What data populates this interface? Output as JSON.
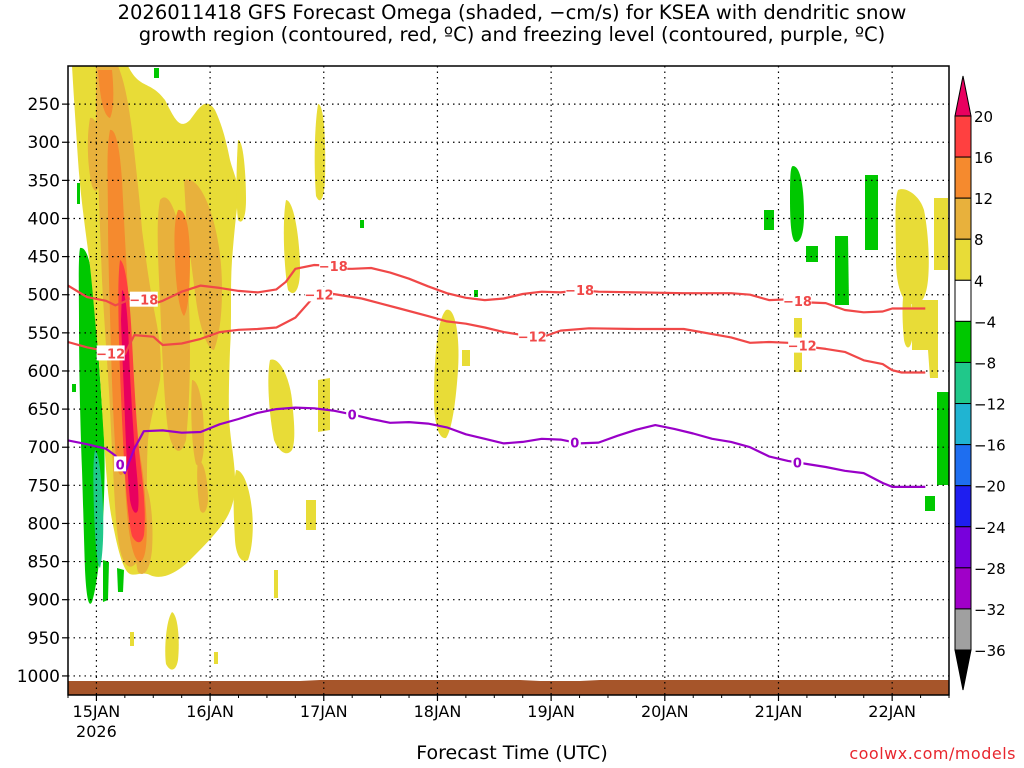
{
  "title": "2026011418 GFS Forecast Omega (shaded, −cm/s) for KSEA with dendritic snow\ngrowth region (contoured, red, ºC) and freezing level (contoured, purple, ºC)",
  "credit": "coolwx.com/models",
  "chart_data": {
    "type": "heatmap",
    "title": "2026011418 GFS Forecast Omega (shaded, −cm/s) for KSEA with dendritic snow growth region (contoured, red, ºC) and freezing level (contoured, purple, ºC)",
    "xlabel": "Forecast Time (UTC)",
    "ylabel": "",
    "x_range_hours": [
      0,
      186
    ],
    "x_ticks": [
      {
        "hour": 6,
        "label": "15JAN",
        "sublabel": "2026"
      },
      {
        "hour": 30,
        "label": "16JAN"
      },
      {
        "hour": 54,
        "label": "17JAN"
      },
      {
        "hour": 78,
        "label": "18JAN"
      },
      {
        "hour": 102,
        "label": "19JAN"
      },
      {
        "hour": 126,
        "label": "20JAN"
      },
      {
        "hour": 150,
        "label": "21JAN"
      },
      {
        "hour": 174,
        "label": "22JAN"
      }
    ],
    "y_ticks": [
      250,
      300,
      350,
      400,
      450,
      500,
      550,
      600,
      650,
      700,
      750,
      800,
      850,
      900,
      950,
      1000
    ],
    "y_range_hpa": [
      200,
      1025
    ],
    "grid": true,
    "colorbar": {
      "labels": [
        "20",
        "16",
        "12",
        "8",
        "4",
        "−4",
        "−8",
        "−12",
        "−16",
        "−20",
        "−24",
        "−28",
        "−32",
        "−36"
      ],
      "colors": [
        "#e8005f",
        "#ff4040",
        "#f58a2e",
        "#e8b13c",
        "#e8dc37",
        "#ffffff",
        "#00c800",
        "#20c88a",
        "#20b4d2",
        "#1e6ef0",
        "#1e1ef0",
        "#7800dc",
        "#a000c8",
        "#a0a0a0",
        "#000000"
      ]
    },
    "contours": [
      {
        "name": "dgz-top",
        "label": "−18",
        "color": "#f04848",
        "points": [
          [
            0,
            488
          ],
          [
            4,
            503
          ],
          [
            8,
            508
          ],
          [
            10,
            514
          ],
          [
            12,
            509
          ],
          [
            14,
            501
          ],
          [
            18,
            512
          ],
          [
            20,
            508
          ],
          [
            24,
            496
          ],
          [
            28,
            488
          ],
          [
            32,
            491
          ],
          [
            36,
            495
          ],
          [
            40,
            497
          ],
          [
            44,
            493
          ],
          [
            46,
            483
          ],
          [
            48,
            466
          ],
          [
            52,
            461
          ],
          [
            56,
            462
          ],
          [
            58,
            466
          ],
          [
            60,
            466
          ],
          [
            64,
            465
          ],
          [
            68,
            471
          ],
          [
            72,
            479
          ],
          [
            76,
            489
          ],
          [
            80,
            498
          ],
          [
            84,
            504
          ],
          [
            88,
            507
          ],
          [
            92,
            505
          ],
          [
            96,
            499
          ],
          [
            100,
            496
          ],
          [
            104,
            497
          ],
          [
            108,
            494
          ],
          [
            112,
            496
          ],
          [
            120,
            497
          ],
          [
            130,
            498
          ],
          [
            140,
            498
          ],
          [
            144,
            500
          ],
          [
            148,
            507
          ],
          [
            152,
            506
          ],
          [
            156,
            510
          ],
          [
            160,
            511
          ],
          [
            164,
            520
          ],
          [
            168,
            523
          ],
          [
            172,
            522
          ],
          [
            174,
            518
          ],
          [
            178,
            518
          ],
          [
            181,
            518
          ]
        ],
        "label_hours": [
          16,
          56,
          108,
          154
        ]
      },
      {
        "name": "dgz-bottom",
        "label": "−12",
        "color": "#f04848",
        "points": [
          [
            0,
            562
          ],
          [
            4,
            569
          ],
          [
            8,
            574
          ],
          [
            10,
            580
          ],
          [
            12,
            578
          ],
          [
            14,
            553
          ],
          [
            18,
            555
          ],
          [
            20,
            566
          ],
          [
            24,
            564
          ],
          [
            28,
            558
          ],
          [
            32,
            549
          ],
          [
            36,
            546
          ],
          [
            40,
            545
          ],
          [
            44,
            543
          ],
          [
            48,
            530
          ],
          [
            52,
            502
          ],
          [
            54,
            497
          ],
          [
            58,
            501
          ],
          [
            62,
            505
          ],
          [
            70,
            518
          ],
          [
            76,
            528
          ],
          [
            80,
            535
          ],
          [
            84,
            538
          ],
          [
            88,
            543
          ],
          [
            92,
            549
          ],
          [
            96,
            553
          ],
          [
            100,
            556
          ],
          [
            104,
            547
          ],
          [
            110,
            544
          ],
          [
            120,
            545
          ],
          [
            130,
            545
          ],
          [
            140,
            556
          ],
          [
            144,
            563
          ],
          [
            148,
            562
          ],
          [
            152,
            563
          ],
          [
            156,
            568
          ],
          [
            160,
            571
          ],
          [
            164,
            575
          ],
          [
            168,
            586
          ],
          [
            172,
            591
          ],
          [
            174,
            599
          ],
          [
            176,
            602
          ],
          [
            181,
            602
          ]
        ],
        "label_hours": [
          9,
          53,
          98,
          155
        ]
      },
      {
        "name": "freezing-level",
        "label": "0",
        "color": "#9900c8",
        "points": [
          [
            0,
            691
          ],
          [
            4,
            696
          ],
          [
            8,
            702
          ],
          [
            10,
            711
          ],
          [
            12,
            734
          ],
          [
            14,
            702
          ],
          [
            16,
            679
          ],
          [
            20,
            678
          ],
          [
            24,
            681
          ],
          [
            28,
            680
          ],
          [
            32,
            670
          ],
          [
            36,
            663
          ],
          [
            40,
            655
          ],
          [
            44,
            650
          ],
          [
            48,
            648
          ],
          [
            52,
            649
          ],
          [
            56,
            652
          ],
          [
            60,
            657
          ],
          [
            64,
            663
          ],
          [
            68,
            668
          ],
          [
            72,
            667
          ],
          [
            76,
            669
          ],
          [
            80,
            674
          ],
          [
            84,
            683
          ],
          [
            88,
            689
          ],
          [
            92,
            695
          ],
          [
            96,
            693
          ],
          [
            100,
            689
          ],
          [
            104,
            690
          ],
          [
            108,
            695
          ],
          [
            112,
            694
          ],
          [
            116,
            685
          ],
          [
            120,
            677
          ],
          [
            124,
            671
          ],
          [
            128,
            676
          ],
          [
            132,
            682
          ],
          [
            136,
            689
          ],
          [
            140,
            693
          ],
          [
            144,
            700
          ],
          [
            148,
            712
          ],
          [
            152,
            718
          ],
          [
            156,
            722
          ],
          [
            160,
            726
          ],
          [
            164,
            731
          ],
          [
            168,
            734
          ],
          [
            172,
            747
          ],
          [
            174,
            752
          ],
          [
            181,
            752
          ]
        ],
        "label_hours": [
          11,
          60,
          107,
          154
        ]
      }
    ]
  }
}
